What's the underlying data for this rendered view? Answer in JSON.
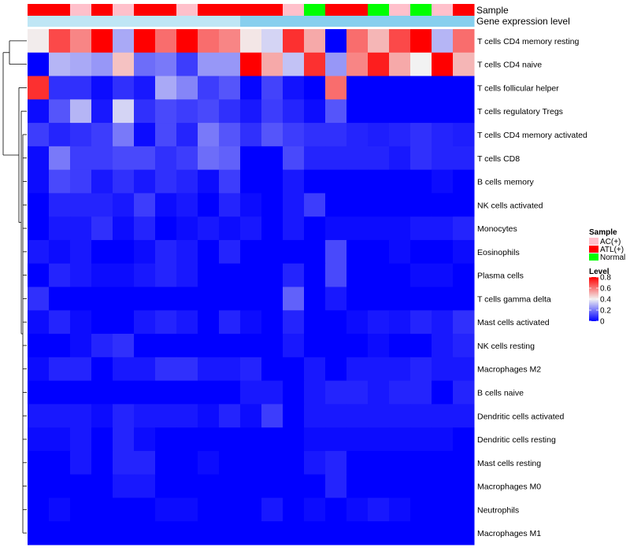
{
  "chart_data": {
    "type": "heatmap",
    "title": "",
    "annotation_rows": [
      {
        "label": "Sample",
        "key": "sample"
      },
      {
        "label": "Gene expression level",
        "key": "gene_expression_level"
      }
    ],
    "column_annotations": {
      "sample": [
        "ATL(+)",
        "ATL(+)",
        "AC(+)",
        "ATL(+)",
        "AC(+)",
        "ATL(+)",
        "ATL(+)",
        "AC(+)",
        "ATL(+)",
        "ATL(+)",
        "ATL(+)",
        "ATL(+)",
        "AC(+)",
        "Normal",
        "ATL(+)",
        "ATL(+)",
        "Normal",
        "AC(+)",
        "Normal",
        "AC(+)",
        "ATL(+)"
      ],
      "gene_expression_level": [
        "low",
        "low",
        "low",
        "low",
        "low",
        "low",
        "low",
        "low",
        "low",
        "low",
        "high",
        "high",
        "high",
        "high",
        "high",
        "high",
        "high",
        "high",
        "high",
        "high",
        "high"
      ]
    },
    "gene_expression_colors": {
      "low": "#bfe6f5",
      "high": "#87cfee"
    },
    "legend": {
      "sample": {
        "title": "Sample",
        "entries": [
          {
            "label": "AC(+)",
            "color": "#ffc0cb"
          },
          {
            "label": "ATL(+)",
            "color": "#ff0000"
          },
          {
            "label": "Normal",
            "color": "#00ff00"
          }
        ]
      },
      "level": {
        "title": "Level",
        "ticks": [
          0,
          0.2,
          0.4,
          0.6,
          0.8
        ],
        "tick_labels": [
          "0",
          "0.2",
          "0.4",
          "0.6",
          "0.8"
        ]
      }
    },
    "color_scale": {
      "min": 0,
      "mid": 0.4,
      "max": 0.8,
      "low_color": "#0000ff",
      "mid_color": "#f2f2f2",
      "high_color": "#ff0000"
    },
    "rows": [
      "T cells CD4 memory resting",
      "T cells CD4 naive",
      "T cells follicular helper",
      "T cells regulatory  Tregs",
      "T cells CD4 memory activated",
      "T cells CD8",
      "B cells memory",
      "NK cells activated",
      "Monocytes",
      "Eosinophils",
      "Plasma cells",
      "T cells gamma delta",
      "Mast cells activated",
      "NK cells resting",
      "Macrophages M2",
      "B cells naive",
      "Dendritic cells activated",
      "Dendritic cells resting",
      "Mast cells resting",
      "Macrophages M0",
      "Neutrophils",
      "Macrophages M1"
    ],
    "values": [
      [
        0.41,
        0.68,
        0.58,
        0.8,
        0.28,
        0.8,
        0.62,
        0.8,
        0.62,
        0.58,
        0.42,
        0.35,
        0.72,
        0.52,
        0.0,
        0.62,
        0.5,
        0.68,
        0.8,
        0.3,
        0.62
      ],
      [
        0.0,
        0.3,
        0.28,
        0.25,
        0.48,
        0.18,
        0.2,
        0.1,
        0.25,
        0.25,
        0.8,
        0.52,
        0.32,
        0.72,
        0.25,
        0.58,
        0.75,
        0.52,
        0.4,
        0.8,
        0.5
      ],
      [
        0.72,
        0.08,
        0.08,
        0.02,
        0.08,
        0.04,
        0.28,
        0.22,
        0.1,
        0.14,
        0.01,
        0.11,
        0.03,
        0.0,
        0.62,
        0.0,
        0.0,
        0.0,
        0.0,
        0.0,
        0.0
      ],
      [
        0.02,
        0.14,
        0.3,
        0.04,
        0.35,
        0.08,
        0.12,
        0.1,
        0.12,
        0.08,
        0.04,
        0.1,
        0.06,
        0.02,
        0.14,
        0.0,
        0.0,
        0.0,
        0.0,
        0.0,
        0.0
      ],
      [
        0.1,
        0.06,
        0.08,
        0.1,
        0.2,
        0.02,
        0.12,
        0.06,
        0.2,
        0.14,
        0.08,
        0.14,
        0.1,
        0.08,
        0.08,
        0.06,
        0.05,
        0.06,
        0.08,
        0.06,
        0.05
      ],
      [
        0.02,
        0.2,
        0.1,
        0.1,
        0.12,
        0.12,
        0.08,
        0.1,
        0.18,
        0.16,
        0.0,
        0.0,
        0.12,
        0.06,
        0.06,
        0.06,
        0.06,
        0.04,
        0.08,
        0.06,
        0.06
      ],
      [
        0.02,
        0.12,
        0.1,
        0.04,
        0.08,
        0.04,
        0.08,
        0.06,
        0.02,
        0.1,
        0.0,
        0.0,
        0.04,
        0.0,
        0.0,
        0.0,
        0.0,
        0.0,
        0.0,
        0.02,
        0.0
      ],
      [
        0.0,
        0.06,
        0.06,
        0.06,
        0.04,
        0.1,
        0.02,
        0.04,
        0.0,
        0.06,
        0.02,
        0.0,
        0.04,
        0.1,
        0.0,
        0.0,
        0.0,
        0.0,
        0.0,
        0.0,
        0.0
      ],
      [
        0.0,
        0.04,
        0.04,
        0.08,
        0.02,
        0.06,
        0.0,
        0.02,
        0.04,
        0.02,
        0.04,
        0.0,
        0.04,
        0.0,
        0.02,
        0.02,
        0.02,
        0.02,
        0.04,
        0.04,
        0.06
      ],
      [
        0.04,
        0.02,
        0.04,
        0.0,
        0.0,
        0.02,
        0.06,
        0.04,
        0.0,
        0.06,
        0.0,
        0.0,
        0.0,
        0.0,
        0.12,
        0.0,
        0.0,
        0.02,
        0.0,
        0.0,
        0.02
      ],
      [
        0.0,
        0.06,
        0.04,
        0.02,
        0.02,
        0.04,
        0.06,
        0.04,
        0.0,
        0.0,
        0.0,
        0.0,
        0.06,
        0.0,
        0.12,
        0.0,
        0.0,
        0.0,
        0.02,
        0.02,
        0.0
      ],
      [
        0.08,
        0.0,
        0.0,
        0.0,
        0.0,
        0.0,
        0.0,
        0.0,
        0.0,
        0.0,
        0.0,
        0.0,
        0.16,
        0.0,
        0.04,
        0.0,
        0.0,
        0.0,
        0.0,
        0.0,
        0.0
      ],
      [
        0.02,
        0.06,
        0.02,
        0.0,
        0.0,
        0.04,
        0.06,
        0.04,
        0.0,
        0.06,
        0.02,
        0.0,
        0.06,
        0.0,
        0.0,
        0.02,
        0.04,
        0.03,
        0.06,
        0.04,
        0.08
      ],
      [
        0.0,
        0.0,
        0.02,
        0.06,
        0.08,
        0.0,
        0.0,
        0.0,
        0.0,
        0.0,
        0.0,
        0.0,
        0.04,
        0.0,
        0.0,
        0.0,
        0.02,
        0.0,
        0.0,
        0.04,
        0.06
      ],
      [
        0.02,
        0.06,
        0.06,
        0.0,
        0.04,
        0.04,
        0.08,
        0.08,
        0.04,
        0.04,
        0.06,
        0.0,
        0.0,
        0.04,
        0.0,
        0.04,
        0.04,
        0.04,
        0.06,
        0.04,
        0.04
      ],
      [
        0.0,
        0.0,
        0.0,
        0.0,
        0.0,
        0.0,
        0.0,
        0.0,
        0.0,
        0.0,
        0.04,
        0.04,
        0.0,
        0.04,
        0.06,
        0.06,
        0.04,
        0.06,
        0.06,
        0.0,
        0.06
      ],
      [
        0.04,
        0.04,
        0.04,
        0.02,
        0.06,
        0.04,
        0.04,
        0.04,
        0.02,
        0.06,
        0.02,
        0.1,
        0.0,
        0.04,
        0.04,
        0.04,
        0.04,
        0.04,
        0.04,
        0.04,
        0.04
      ],
      [
        0.02,
        0.02,
        0.04,
        0.0,
        0.06,
        0.02,
        0.0,
        0.0,
        0.0,
        0.0,
        0.0,
        0.0,
        0.0,
        0.02,
        0.02,
        0.02,
        0.02,
        0.02,
        0.02,
        0.02,
        0.0
      ],
      [
        0.0,
        0.0,
        0.04,
        0.0,
        0.06,
        0.06,
        0.0,
        0.0,
        0.02,
        0.0,
        0.0,
        0.0,
        0.0,
        0.04,
        0.06,
        0.0,
        0.0,
        0.0,
        0.0,
        0.0,
        0.0
      ],
      [
        0.0,
        0.0,
        0.0,
        0.0,
        0.04,
        0.04,
        0.0,
        0.0,
        0.0,
        0.0,
        0.0,
        0.0,
        0.0,
        0.0,
        0.06,
        0.0,
        0.0,
        0.0,
        0.0,
        0.0,
        0.0
      ],
      [
        0.0,
        0.02,
        0.0,
        0.0,
        0.0,
        0.0,
        0.02,
        0.02,
        0.0,
        0.0,
        0.0,
        0.04,
        0.0,
        0.02,
        0.0,
        0.02,
        0.04,
        0.02,
        0.0,
        0.0,
        0.0
      ],
      [
        0.0,
        0.0,
        0.0,
        0.0,
        0.0,
        0.0,
        0.0,
        0.0,
        0.0,
        0.0,
        0.0,
        0.0,
        0.0,
        0.0,
        0.0,
        0.0,
        0.0,
        0.0,
        0.0,
        0.0,
        0.0
      ]
    ],
    "dendrogram": "row clustering dendrogram (left side)"
  }
}
